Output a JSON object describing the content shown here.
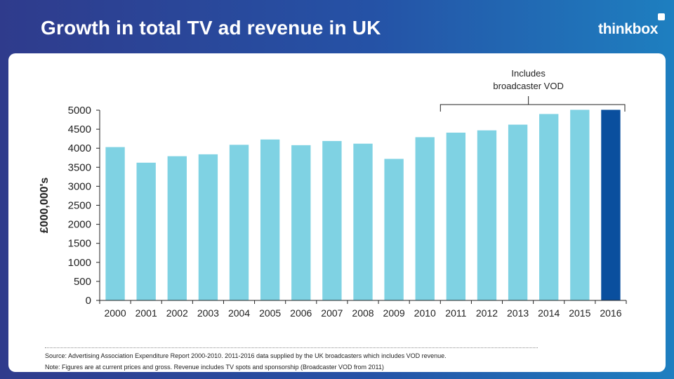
{
  "header": {
    "title": "Growth in total TV ad revenue in UK",
    "logo_text": "thinkbox"
  },
  "colors": {
    "bar": "#7fd2e3",
    "highlight_bar": "#0a4f9e",
    "axis": "#222222"
  },
  "chart_data": {
    "type": "bar",
    "title": "",
    "xlabel": "",
    "ylabel": "£000,000's",
    "ylim": [
      0,
      5000
    ],
    "yticks": [
      0,
      500,
      1000,
      1500,
      2000,
      2500,
      3000,
      3500,
      4000,
      4500,
      5000
    ],
    "grid": false,
    "categories": [
      "2000",
      "2001",
      "2002",
      "2003",
      "2004",
      "2005",
      "2006",
      "2007",
      "2008",
      "2009",
      "2010",
      "2011",
      "2012",
      "2013",
      "2014",
      "2015",
      "2016"
    ],
    "values": [
      4030,
      3620,
      3790,
      3840,
      4090,
      4230,
      4080,
      4190,
      4120,
      3720,
      4290,
      4410,
      4470,
      4620,
      4900,
      5010,
      5010
    ],
    "highlight_category": "2016",
    "annotation": {
      "text_line1": "Includes",
      "text_line2": "broadcaster VOD",
      "from": "2011",
      "to": "2016"
    }
  },
  "footer": {
    "source": "Source: Advertising Association Expenditure Report  2000-2010.  2011-2016 data supplied by the UK broadcasters  which includes VOD revenue.",
    "note": "Note: Figures are at current prices and gross.  Revenue includes TV spots and sponsorship (Broadcaster VOD from 2011)"
  }
}
